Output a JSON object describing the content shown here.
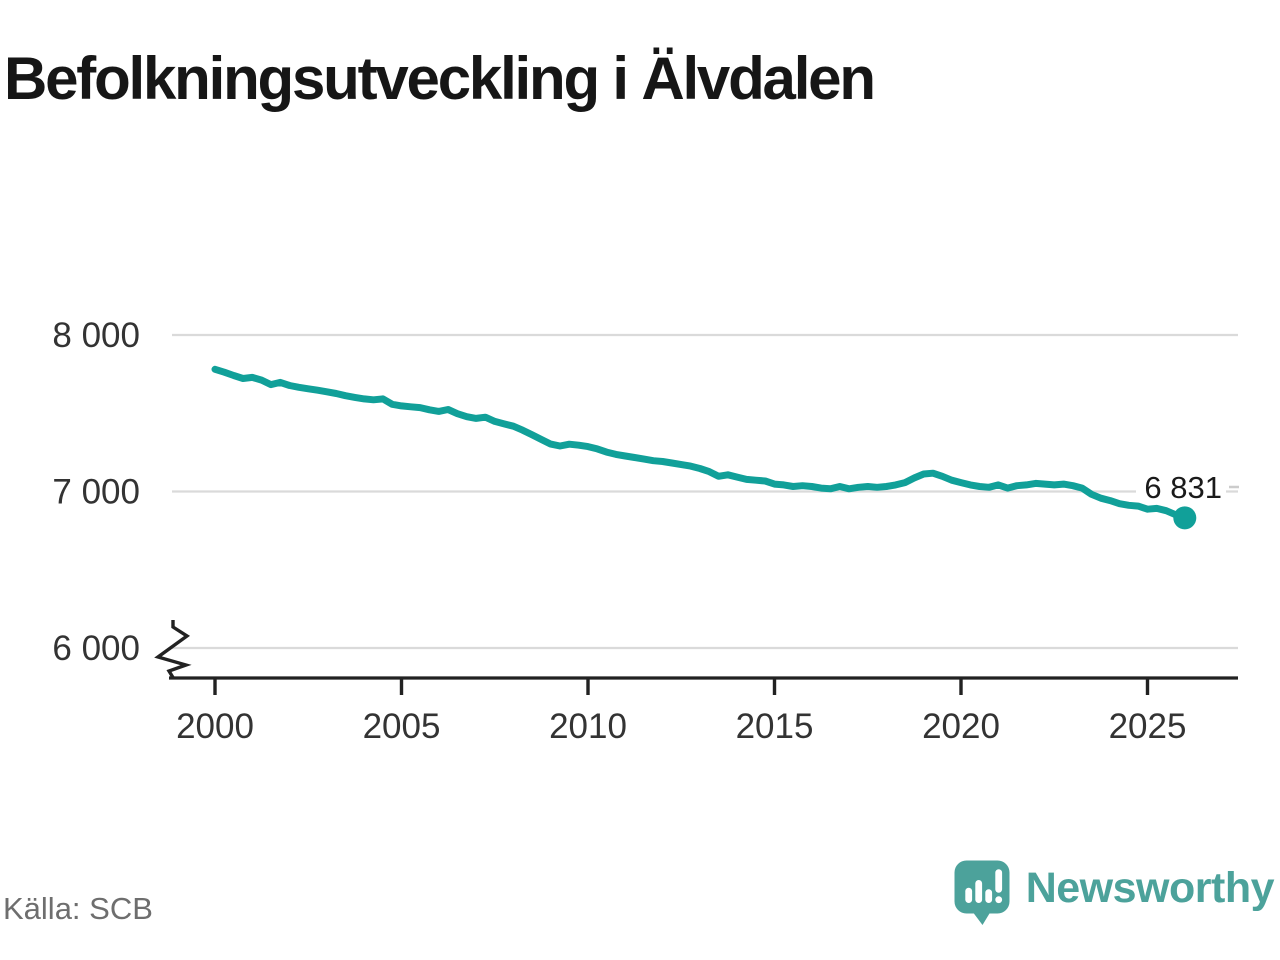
{
  "title": "Befolkningsutveckling i Älvdalen",
  "source": "Källa: SCB",
  "branding": {
    "wordmark": "Newsworthy"
  },
  "colors": {
    "line": "#11A099",
    "logo": "#4CA29B",
    "grid": "#DADADA",
    "axis": "#222222",
    "tick_text": "#333333",
    "title_text": "#161616",
    "muted_text": "#6E6E6E",
    "annotation_text": "#1A1A1A",
    "stub": "#CCCCCC"
  },
  "chart_data": {
    "type": "line",
    "title": "Befolkningsutveckling i Älvdalen",
    "series_name": "Befolkning i Älvdalen",
    "xlabel": "",
    "ylabel": "",
    "xlim": [
      1998.8,
      2027.4
    ],
    "ylim": [
      5800,
      8200
    ],
    "grid": "horizontal",
    "y_axis_break": true,
    "legend": "none",
    "end_label": "6 831",
    "end_point": {
      "x": 2026.0,
      "y": 6831
    },
    "x_ticks": [
      {
        "label": "2000",
        "value": 2000
      },
      {
        "label": "2005",
        "value": 2005
      },
      {
        "label": "2010",
        "value": 2010
      },
      {
        "label": "2015",
        "value": 2015
      },
      {
        "label": "2020",
        "value": 2020
      },
      {
        "label": "2025",
        "value": 2025
      }
    ],
    "y_ticks": [
      {
        "label": "8 000",
        "value": 8000
      },
      {
        "label": "7 000",
        "value": 7000
      },
      {
        "label": "6 000",
        "value": 6000
      }
    ],
    "points": [
      [
        2000.0,
        7781
      ],
      [
        2000.25,
        7762
      ],
      [
        2000.5,
        7741
      ],
      [
        2000.75,
        7722
      ],
      [
        2001.0,
        7729
      ],
      [
        2001.25,
        7712
      ],
      [
        2001.5,
        7683
      ],
      [
        2001.75,
        7697
      ],
      [
        2002.0,
        7677
      ],
      [
        2002.25,
        7666
      ],
      [
        2002.5,
        7656
      ],
      [
        2002.75,
        7647
      ],
      [
        2003.0,
        7637
      ],
      [
        2003.25,
        7626
      ],
      [
        2003.5,
        7612
      ],
      [
        2003.75,
        7601
      ],
      [
        2004.0,
        7592
      ],
      [
        2004.25,
        7586
      ],
      [
        2004.5,
        7592
      ],
      [
        2004.75,
        7557
      ],
      [
        2005.0,
        7547
      ],
      [
        2005.25,
        7541
      ],
      [
        2005.5,
        7536
      ],
      [
        2005.75,
        7522
      ],
      [
        2006.0,
        7512
      ],
      [
        2006.25,
        7524
      ],
      [
        2006.5,
        7497
      ],
      [
        2006.75,
        7478
      ],
      [
        2007.0,
        7467
      ],
      [
        2007.25,
        7475
      ],
      [
        2007.5,
        7448
      ],
      [
        2007.75,
        7432
      ],
      [
        2008.0,
        7417
      ],
      [
        2008.25,
        7392
      ],
      [
        2008.5,
        7362
      ],
      [
        2008.75,
        7332
      ],
      [
        2009.0,
        7303
      ],
      [
        2009.25,
        7291
      ],
      [
        2009.5,
        7302
      ],
      [
        2009.75,
        7296
      ],
      [
        2010.0,
        7287
      ],
      [
        2010.25,
        7272
      ],
      [
        2010.5,
        7252
      ],
      [
        2010.75,
        7237
      ],
      [
        2011.0,
        7227
      ],
      [
        2011.25,
        7217
      ],
      [
        2011.5,
        7207
      ],
      [
        2011.75,
        7197
      ],
      [
        2012.0,
        7192
      ],
      [
        2012.25,
        7182
      ],
      [
        2012.5,
        7172
      ],
      [
        2012.75,
        7162
      ],
      [
        2013.0,
        7147
      ],
      [
        2013.25,
        7127
      ],
      [
        2013.5,
        7097
      ],
      [
        2013.75,
        7107
      ],
      [
        2014.0,
        7092
      ],
      [
        2014.25,
        7077
      ],
      [
        2014.5,
        7072
      ],
      [
        2014.75,
        7067
      ],
      [
        2015.0,
        7047
      ],
      [
        2015.25,
        7042
      ],
      [
        2015.5,
        7032
      ],
      [
        2015.75,
        7037
      ],
      [
        2016.0,
        7032
      ],
      [
        2016.25,
        7022
      ],
      [
        2016.5,
        7017
      ],
      [
        2016.75,
        7032
      ],
      [
        2017.0,
        7017
      ],
      [
        2017.25,
        7027
      ],
      [
        2017.5,
        7032
      ],
      [
        2017.75,
        7027
      ],
      [
        2018.0,
        7032
      ],
      [
        2018.25,
        7042
      ],
      [
        2018.5,
        7057
      ],
      [
        2018.75,
        7087
      ],
      [
        2019.0,
        7112
      ],
      [
        2019.25,
        7117
      ],
      [
        2019.5,
        7097
      ],
      [
        2019.75,
        7072
      ],
      [
        2020.0,
        7057
      ],
      [
        2020.25,
        7042
      ],
      [
        2020.5,
        7032
      ],
      [
        2020.75,
        7027
      ],
      [
        2021.0,
        7042
      ],
      [
        2021.25,
        7022
      ],
      [
        2021.5,
        7037
      ],
      [
        2021.75,
        7042
      ],
      [
        2022.0,
        7052
      ],
      [
        2022.25,
        7047
      ],
      [
        2022.5,
        7042
      ],
      [
        2022.75,
        7047
      ],
      [
        2023.0,
        7037
      ],
      [
        2023.25,
        7022
      ],
      [
        2023.5,
        6982
      ],
      [
        2023.75,
        6957
      ],
      [
        2024.0,
        6942
      ],
      [
        2024.25,
        6922
      ],
      [
        2024.5,
        6912
      ],
      [
        2024.75,
        6907
      ],
      [
        2025.0,
        6887
      ],
      [
        2025.25,
        6892
      ],
      [
        2025.5,
        6877
      ],
      [
        2025.75,
        6852
      ],
      [
        2026.0,
        6831
      ]
    ]
  }
}
